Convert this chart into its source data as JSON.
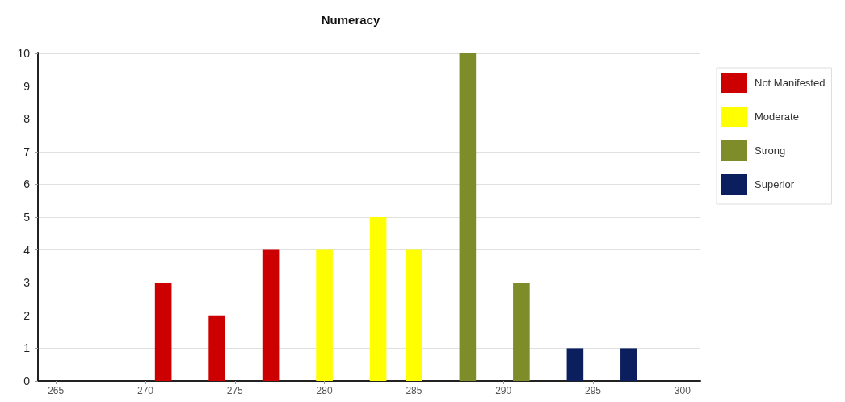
{
  "chart_data": {
    "type": "bar",
    "title": "Numeracy",
    "series": [
      {
        "name": "Not Manifested",
        "color": "#cc0000",
        "x": [
          271,
          274,
          277
        ],
        "values": [
          3,
          2,
          4
        ]
      },
      {
        "name": "Moderate",
        "color": "#ffff00",
        "x": [
          280,
          283,
          285
        ],
        "values": [
          4,
          5,
          4
        ]
      },
      {
        "name": "Strong",
        "color": "#7f8c2a",
        "x": [
          288,
          291
        ],
        "values": [
          10,
          3
        ]
      },
      {
        "name": "Superior",
        "color": "#0b1f5e",
        "x": [
          294,
          297
        ],
        "values": [
          1,
          1
        ]
      }
    ],
    "xlim": [
      264,
      301
    ],
    "xticks": [
      265,
      270,
      275,
      280,
      285,
      290,
      295,
      300
    ],
    "ylim": [
      0,
      10
    ],
    "yticks": [
      0,
      1,
      2,
      3,
      4,
      5,
      6,
      7,
      8,
      9,
      10
    ],
    "grid": "y",
    "legend": "top right"
  }
}
